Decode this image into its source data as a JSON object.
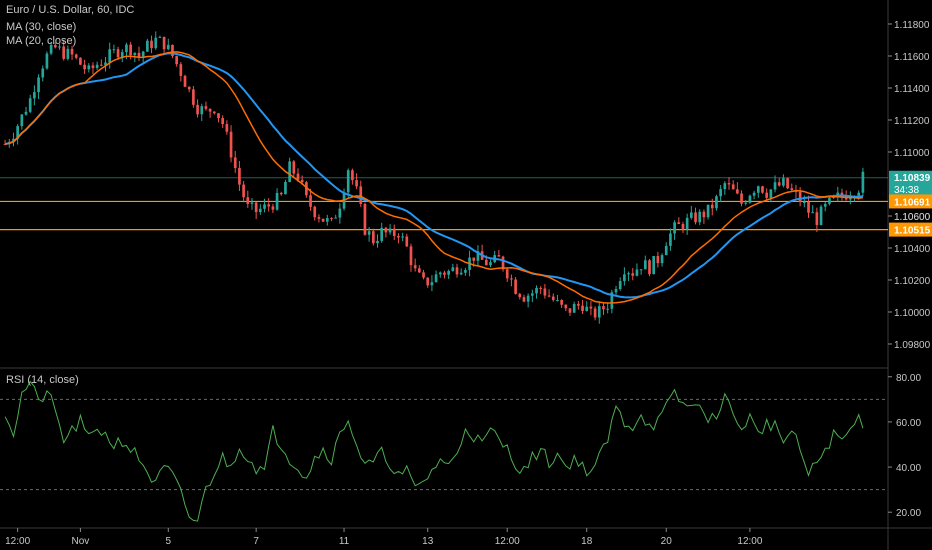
{
  "header": {
    "title": "Euro / U.S. Dollar, 60, IDC",
    "ma30": "MA (30, close)",
    "ma20": "MA (20, close)",
    "rsi": "RSI (14, close)"
  },
  "colors": {
    "background": "#000000",
    "up": "#26a69a",
    "down": "#ef5350",
    "ma30": "#2196f3",
    "ma20": "#ff6d00",
    "rsi": "#4caf50",
    "level": "#ff9800",
    "price_line": "#26a69a"
  },
  "chart_data": [
    {
      "type": "candlestick",
      "title": "Euro / U.S. Dollar, 60, IDC",
      "ylim": [
        1.0965,
        1.1195
      ],
      "y_ticks": [
        "1.11800",
        "1.11600",
        "1.11400",
        "1.11200",
        "1.11000",
        "1.10600",
        "1.10400",
        "1.10200",
        "1.10000",
        "1.09800"
      ],
      "x_ticks": [
        "12:00",
        "Nov",
        "5",
        "7",
        "11",
        "13",
        "12:00",
        "18",
        "20",
        "12:00"
      ],
      "series": [
        {
          "name": "MA (30, close)",
          "color": "#2196f3"
        },
        {
          "name": "MA (20, close)",
          "color": "#ff6d00"
        }
      ],
      "close_anchors": [
        [
          0,
          1.1105
        ],
        [
          2,
          1.1112
        ],
        [
          4,
          1.1122
        ],
        [
          6,
          1.1133
        ],
        [
          8,
          1.115
        ],
        [
          10,
          1.116
        ],
        [
          12,
          1.1165
        ],
        [
          14,
          1.1162
        ],
        [
          16,
          1.116
        ],
        [
          18,
          1.1155
        ],
        [
          20,
          1.115
        ],
        [
          22,
          1.1155
        ],
        [
          24,
          1.1158
        ],
        [
          26,
          1.1162
        ],
        [
          28,
          1.1165
        ],
        [
          30,
          1.1165
        ],
        [
          32,
          1.116
        ],
        [
          34,
          1.1166
        ],
        [
          36,
          1.117
        ],
        [
          38,
          1.1168
        ],
        [
          40,
          1.116
        ],
        [
          42,
          1.115
        ],
        [
          44,
          1.1138
        ],
        [
          46,
          1.1128
        ],
        [
          48,
          1.1125
        ],
        [
          50,
          1.1128
        ],
        [
          52,
          1.1118
        ],
        [
          54,
          1.11
        ],
        [
          56,
          1.108
        ],
        [
          58,
          1.1065
        ],
        [
          60,
          1.1063
        ],
        [
          62,
          1.1065
        ],
        [
          64,
          1.1068
        ],
        [
          66,
          1.1072
        ],
        [
          68,
          1.109
        ],
        [
          70,
          1.1085
        ],
        [
          72,
          1.107
        ],
        [
          74,
          1.1063
        ],
        [
          76,
          1.1058
        ],
        [
          78,
          1.1055
        ],
        [
          80,
          1.1068
        ],
        [
          82,
          1.109
        ],
        [
          84,
          1.1075
        ],
        [
          86,
          1.1052
        ],
        [
          88,
          1.1045
        ],
        [
          90,
          1.105
        ],
        [
          92,
          1.1048
        ],
        [
          94,
          1.105
        ],
        [
          96,
          1.104
        ],
        [
          98,
          1.1025
        ],
        [
          100,
          1.1018
        ],
        [
          102,
          1.102
        ],
        [
          104,
          1.1025
        ],
        [
          106,
          1.1025
        ],
        [
          108,
          1.1028
        ],
        [
          110,
          1.103
        ],
        [
          112,
          1.1035
        ],
        [
          114,
          1.1032
        ],
        [
          116,
          1.103
        ],
        [
          118,
          1.1033
        ],
        [
          120,
          1.1025
        ],
        [
          122,
          1.1015
        ],
        [
          124,
          1.101
        ],
        [
          126,
          1.1012
        ],
        [
          128,
          1.1015
        ],
        [
          130,
          1.101
        ],
        [
          132,
          1.1005
        ],
        [
          134,
          1.1
        ],
        [
          136,
          1.1003
        ],
        [
          138,
          1.1005
        ],
        [
          140,
          1.0998
        ],
        [
          142,
          1.1
        ],
        [
          144,
          1.1005
        ],
        [
          146,
          1.1018
        ],
        [
          148,
          1.1028
        ],
        [
          150,
          1.1025
        ],
        [
          152,
          1.103
        ],
        [
          154,
          1.1028
        ],
        [
          156,
          1.1033
        ],
        [
          158,
          1.1045
        ],
        [
          160,
          1.1052
        ],
        [
          162,
          1.1055
        ],
        [
          164,
          1.1058
        ],
        [
          166,
          1.106
        ],
        [
          168,
          1.1063
        ],
        [
          170,
          1.107
        ],
        [
          172,
          1.108
        ],
        [
          174,
          1.1075
        ],
        [
          176,
          1.1068
        ],
        [
          178,
          1.1075
        ],
        [
          180,
          1.108
        ],
        [
          182,
          1.1075
        ],
        [
          184,
          1.1078
        ],
        [
          186,
          1.108
        ],
        [
          188,
          1.1075
        ],
        [
          190,
          1.107
        ],
        [
          192,
          1.1063
        ],
        [
          194,
          1.1058
        ],
        [
          196,
          1.1065
        ],
        [
          198,
          1.107
        ],
        [
          200,
          1.1073
        ],
        [
          202,
          1.1075
        ],
        [
          204,
          1.1078
        ],
        [
          205,
          1.1084
        ]
      ],
      "price_line": {
        "value": 1.10839,
        "label": "1.10839",
        "countdown": "34:38"
      },
      "levels": [
        {
          "value": 1.10691,
          "label": "1.10691"
        },
        {
          "value": 1.10515,
          "label": "1.10515"
        }
      ],
      "partial_tick": "1.10600"
    },
    {
      "type": "line",
      "title": "RSI (14, close)",
      "ylim": [
        13,
        83
      ],
      "y_ticks": [
        "80.00",
        "60.00",
        "40.00",
        "20.00"
      ],
      "bands": [
        70,
        30
      ],
      "anchors": [
        [
          0,
          65
        ],
        [
          2,
          55
        ],
        [
          4,
          72
        ],
        [
          6,
          78
        ],
        [
          8,
          68
        ],
        [
          10,
          74
        ],
        [
          12,
          64
        ],
        [
          14,
          52
        ],
        [
          16,
          56
        ],
        [
          18,
          60
        ],
        [
          20,
          52
        ],
        [
          22,
          58
        ],
        [
          24,
          54
        ],
        [
          26,
          50
        ],
        [
          28,
          52
        ],
        [
          30,
          48
        ],
        [
          32,
          44
        ],
        [
          34,
          38
        ],
        [
          36,
          32
        ],
        [
          38,
          40
        ],
        [
          40,
          36
        ],
        [
          42,
          28
        ],
        [
          44,
          18
        ],
        [
          46,
          16
        ],
        [
          48,
          30
        ],
        [
          50,
          38
        ],
        [
          52,
          44
        ],
        [
          54,
          40
        ],
        [
          56,
          50
        ],
        [
          58,
          44
        ],
        [
          60,
          40
        ],
        [
          62,
          38
        ],
        [
          64,
          56
        ],
        [
          66,
          50
        ],
        [
          68,
          44
        ],
        [
          70,
          40
        ],
        [
          72,
          36
        ],
        [
          74,
          44
        ],
        [
          76,
          48
        ],
        [
          78,
          44
        ],
        [
          80,
          54
        ],
        [
          82,
          62
        ],
        [
          84,
          50
        ],
        [
          86,
          40
        ],
        [
          88,
          42
        ],
        [
          90,
          46
        ],
        [
          92,
          42
        ],
        [
          94,
          36
        ],
        [
          96,
          38
        ],
        [
          98,
          30
        ],
        [
          100,
          34
        ],
        [
          102,
          38
        ],
        [
          104,
          44
        ],
        [
          106,
          40
        ],
        [
          108,
          46
        ],
        [
          110,
          58
        ],
        [
          112,
          54
        ],
        [
          114,
          50
        ],
        [
          116,
          56
        ],
        [
          118,
          52
        ],
        [
          120,
          48
        ],
        [
          122,
          42
        ],
        [
          124,
          38
        ],
        [
          126,
          44
        ],
        [
          128,
          48
        ],
        [
          130,
          42
        ],
        [
          132,
          46
        ],
        [
          134,
          40
        ],
        [
          136,
          44
        ],
        [
          138,
          40
        ],
        [
          140,
          38
        ],
        [
          142,
          44
        ],
        [
          144,
          52
        ],
        [
          146,
          66
        ],
        [
          148,
          60
        ],
        [
          150,
          58
        ],
        [
          152,
          64
        ],
        [
          154,
          58
        ],
        [
          156,
          60
        ],
        [
          158,
          66
        ],
        [
          160,
          72
        ],
        [
          162,
          68
        ],
        [
          164,
          66
        ],
        [
          166,
          70
        ],
        [
          168,
          58
        ],
        [
          170,
          64
        ],
        [
          172,
          72
        ],
        [
          174,
          62
        ],
        [
          176,
          58
        ],
        [
          178,
          62
        ],
        [
          180,
          54
        ],
        [
          182,
          60
        ],
        [
          184,
          58
        ],
        [
          186,
          52
        ],
        [
          188,
          55
        ],
        [
          190,
          48
        ],
        [
          192,
          36
        ],
        [
          194,
          42
        ],
        [
          196,
          48
        ],
        [
          198,
          54
        ],
        [
          200,
          52
        ],
        [
          202,
          56
        ],
        [
          204,
          62
        ],
        [
          205,
          60
        ]
      ]
    }
  ]
}
